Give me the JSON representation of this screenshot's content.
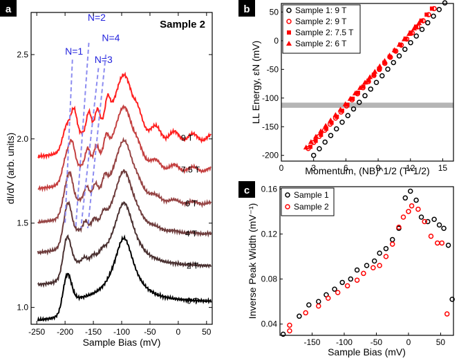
{
  "chart_data": [
    {
      "panel": "a",
      "type": "line",
      "title": "Sample 2",
      "xlabel": "Sample Bias (mV)",
      "ylabel": "dI/dV (arb. units)",
      "xlim": [
        -260,
        60
      ],
      "ylim": [
        0.9,
        2.75
      ],
      "xticks": [
        "-250",
        "-200",
        "-150",
        "-100",
        "-50",
        "0",
        "50"
      ],
      "yticks": [
        "1.0",
        "1.5",
        "2.0",
        "2.5"
      ],
      "series": [
        {
          "name": "0 T",
          "offset": 1.0,
          "color": "#000000"
        },
        {
          "name": "2 T",
          "offset": 1.21,
          "color": "#4a3131"
        },
        {
          "name": "4 T",
          "offset": 1.4,
          "color": "#6e3c3c"
        },
        {
          "name": "6 T",
          "offset": 1.58,
          "color": "#964444"
        },
        {
          "name": "7.5 T",
          "offset": 1.78,
          "color": "#c44040"
        },
        {
          "name": "9 T",
          "offset": 1.97,
          "color": "#ff2020"
        }
      ],
      "annotations": [
        "N=1",
        "N=2",
        "N=3",
        "N=4"
      ]
    },
    {
      "panel": "b",
      "type": "scatter",
      "xlabel": "Momentum, (NB)^1/2 (T^1/2)",
      "ylabel": "LL Energy, εN (mV)",
      "xlim": [
        0,
        16
      ],
      "ylim": [
        -210,
        65
      ],
      "xticks": [
        "0",
        "3",
        "6",
        "9",
        "12",
        "15"
      ],
      "yticks": [
        "-200",
        "-150",
        "-100",
        "-50",
        "0",
        "50"
      ],
      "band_y": [
        -117,
        -108
      ],
      "series": [
        {
          "name": "Sample 1:  9 T",
          "marker": "circle-open",
          "color": "#000000",
          "x0": 3.0,
          "x1": 15.2,
          "y0": -200,
          "y1": 66
        },
        {
          "name": "Sample 2:  9 T",
          "marker": "circle-open",
          "color": "#ff0000",
          "x0": 2.5,
          "x1": 14.2,
          "y0": -188,
          "y1": 56
        },
        {
          "name": "Sample 2:  7.5 T",
          "marker": "square",
          "color": "#ff0000",
          "x0": 2.7,
          "x1": 14.0,
          "y0": -185,
          "y1": 56
        },
        {
          "name": "Sample 2:  6 T",
          "marker": "triangle",
          "color": "#ff0000",
          "x0": 2.3,
          "x1": 12.8,
          "y0": -186,
          "y1": 31
        }
      ]
    },
    {
      "panel": "c",
      "type": "scatter",
      "xlabel": "Sample Bias (mV)",
      "ylabel": "Inverse Peak Width (mV⁻¹)",
      "xlim": [
        -200,
        70
      ],
      "ylim": [
        0.03,
        0.162
      ],
      "xticks": [
        "-150",
        "-100",
        "-50",
        "0",
        "50"
      ],
      "yticks": [
        "0.04",
        "0.08",
        "0.12",
        "0.16"
      ],
      "series": [
        {
          "name": "Sample 1",
          "color": "#000000",
          "x": [
            -195,
            -170,
            -155,
            -140,
            -128,
            -115,
            -103,
            -90,
            -80,
            -65,
            -53,
            -45,
            -35,
            -25,
            -15,
            -5,
            3,
            12,
            20,
            30,
            40,
            48,
            55,
            62,
            68
          ],
          "y": [
            0.031,
            0.047,
            0.057,
            0.06,
            0.066,
            0.071,
            0.077,
            0.08,
            0.088,
            0.092,
            0.096,
            0.103,
            0.107,
            0.115,
            0.125,
            0.152,
            0.158,
            0.15,
            0.135,
            0.131,
            0.133,
            0.128,
            0.125,
            0.11,
            0.062
          ]
        },
        {
          "name": "Sample 2",
          "color": "#ff0000",
          "x": [
            -185,
            -185,
            -160,
            -140,
            -125,
            -110,
            -95,
            -80,
            -70,
            -55,
            -45,
            -35,
            -25,
            -15,
            -8,
            0,
            5,
            15,
            25,
            35,
            45,
            52,
            60
          ],
          "y": [
            0.034,
            0.039,
            0.05,
            0.056,
            0.063,
            0.068,
            0.074,
            0.079,
            0.085,
            0.09,
            0.092,
            0.1,
            0.111,
            0.126,
            0.135,
            0.14,
            0.145,
            0.142,
            0.131,
            0.118,
            0.112,
            0.112,
            0.049
          ]
        }
      ]
    }
  ]
}
